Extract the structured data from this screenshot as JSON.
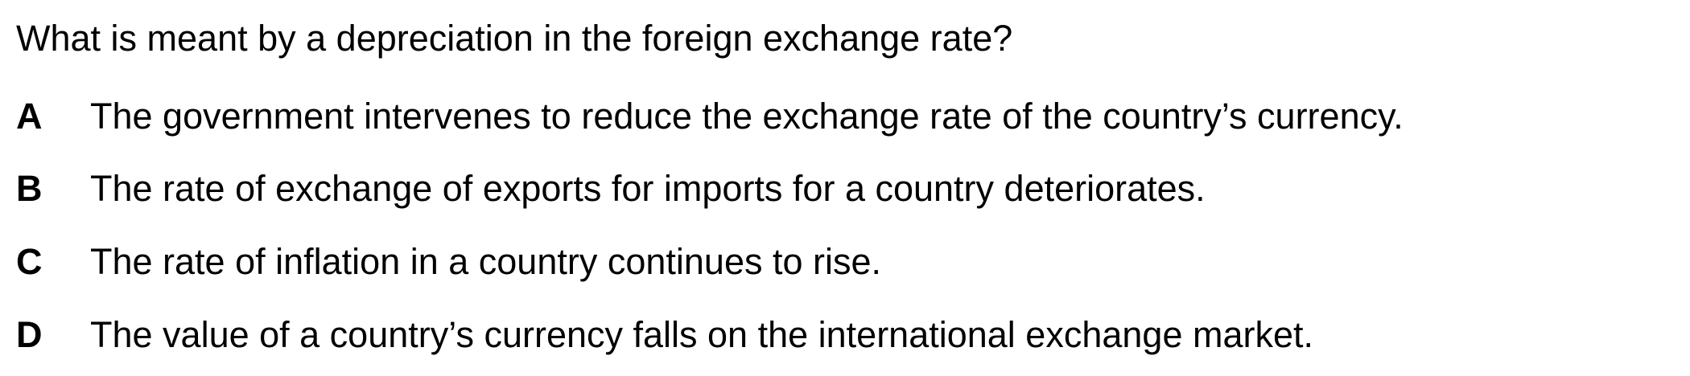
{
  "question": {
    "text": "What is meant by a depreciation in the foreign exchange rate?"
  },
  "options": [
    {
      "letter": "A",
      "text": "The government intervenes to reduce the exchange rate of the country’s currency."
    },
    {
      "letter": "B",
      "text": "The rate of exchange of exports for imports for a country deteriorates."
    },
    {
      "letter": "C",
      "text": "The rate of inflation in a country continues to rise."
    },
    {
      "letter": "D",
      "text": "The value of a country’s currency falls on the international exchange market."
    }
  ]
}
